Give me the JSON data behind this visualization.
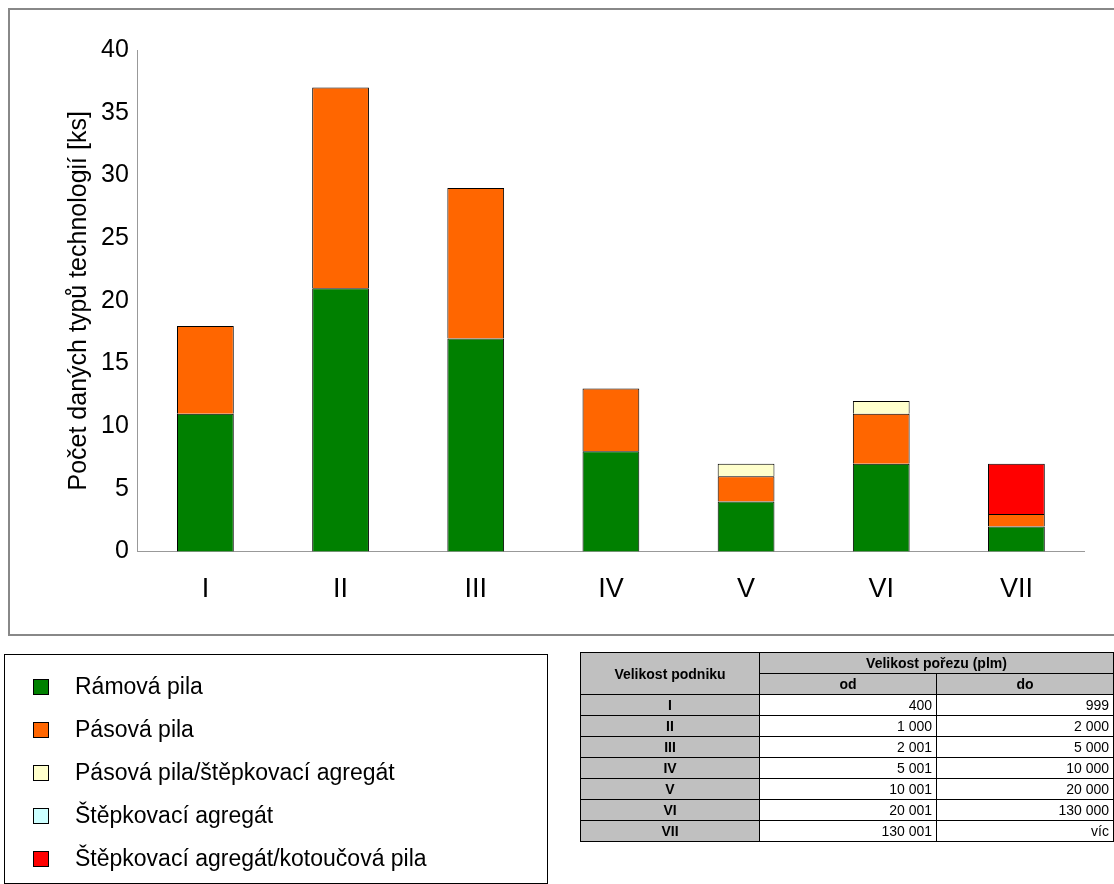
{
  "chart_data": [
    {
      "type": "bar",
      "stacked": true,
      "ylabel": "Počet daných typů technologií [ks]",
      "categories": [
        "I",
        "II",
        "III",
        "IV",
        "V",
        "VI",
        "VII"
      ],
      "series": [
        {
          "name": "Rámová pila",
          "color": "#008000",
          "values": [
            11,
            21,
            17,
            8,
            4,
            7,
            2
          ]
        },
        {
          "name": "Pásová pila",
          "color": "#ff6600",
          "values": [
            7,
            16,
            12,
            5,
            2,
            4,
            1
          ]
        },
        {
          "name": "Pásová pila/štěpkovací agregát",
          "color": "#ffffcc",
          "values": [
            0,
            0,
            0,
            0,
            1,
            1,
            0
          ]
        },
        {
          "name": "Štěpkovací agregát",
          "color": "#ccffff",
          "values": [
            0,
            0,
            0,
            0,
            0,
            0,
            0
          ]
        },
        {
          "name": "Štěpkovací agregát/kotoučová pila",
          "color": "#ff0000",
          "values": [
            0,
            0,
            0,
            0,
            0,
            0,
            4
          ]
        }
      ],
      "ylim": [
        0,
        40
      ],
      "yticks": [
        0,
        5,
        10,
        15,
        20,
        25,
        30,
        35,
        40
      ],
      "grid": false,
      "legend": "bottom left"
    },
    {
      "type": "other",
      "ylabel": "Velikost podniku",
      "title": "Velikost pořezu (plm)",
      "categories": [
        "od",
        "do"
      ],
      "y_categories": [
        "I",
        "II",
        "III",
        "IV",
        "V",
        "VI",
        "VII"
      ],
      "cell_labels": [
        [
          "400",
          "999"
        ],
        [
          "1 000",
          "2 000"
        ],
        [
          "2 001",
          "5 000"
        ],
        [
          "5 001",
          "10 000"
        ],
        [
          "10 001",
          "20 000"
        ],
        [
          "20 001",
          "130 000"
        ],
        [
          "130 001",
          "víc"
        ]
      ]
    }
  ]
}
